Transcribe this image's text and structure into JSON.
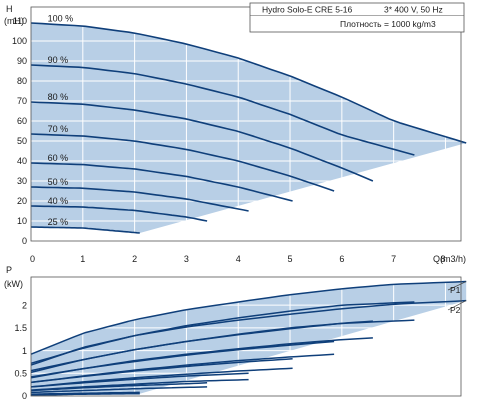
{
  "chart_data": [
    {
      "type": "line",
      "title": "Hydro Solo-E CRE 5-16",
      "subtitle": "3* 400 V, 50 Hz",
      "note": "Плотность = 1000 kg/m3",
      "ylabel": "H",
      "yunit": "(mH)",
      "xlabel": "Q(m3/h)",
      "xlim": [
        0,
        8.3
      ],
      "ylim": [
        0,
        117
      ],
      "xticks": [
        0,
        1,
        2,
        3,
        4,
        5,
        6,
        7,
        8
      ],
      "yticks": [
        0,
        10,
        20,
        30,
        40,
        50,
        60,
        70,
        80,
        90,
        100,
        110
      ],
      "grid": true,
      "operating_area_color": "#b8cfe6",
      "curve_color": "#0f3f7a",
      "series": [
        {
          "name": "100 %",
          "x": [
            0,
            1,
            2,
            3,
            4,
            5,
            6,
            7,
            8.4
          ],
          "y": [
            109,
            107.5,
            104,
            98.5,
            91.5,
            82.5,
            72,
            60,
            49
          ]
        },
        {
          "name": "90 %",
          "x": [
            0,
            1,
            2,
            3,
            4,
            5,
            6,
            7.4
          ],
          "y": [
            88,
            86.8,
            83.7,
            78.5,
            72,
            63.3,
            53,
            43
          ]
        },
        {
          "name": "80 %",
          "x": [
            0,
            1,
            2,
            3,
            4,
            5,
            6,
            6.6
          ],
          "y": [
            69.5,
            68.4,
            65.5,
            61,
            54.8,
            46.5,
            36.5,
            30
          ]
        },
        {
          "name": "70 %",
          "x": [
            0,
            1,
            2,
            3,
            4,
            5,
            5.85
          ],
          "y": [
            53.5,
            52.5,
            50,
            45.8,
            40,
            32.5,
            25
          ]
        },
        {
          "name": "60 %",
          "x": [
            0,
            1,
            2,
            3,
            4,
            5.05
          ],
          "y": [
            39,
            38.2,
            36,
            32.3,
            27,
            20
          ]
        },
        {
          "name": "50 %",
          "x": [
            0,
            1,
            2,
            3,
            4.2
          ],
          "y": [
            27,
            26.4,
            24.5,
            21,
            15
          ]
        },
        {
          "name": "40 %",
          "x": [
            0,
            1,
            2,
            3,
            3.4
          ],
          "y": [
            17.5,
            17,
            15.3,
            12,
            10
          ]
        },
        {
          "name": "25 %",
          "x": [
            0,
            1,
            2.1
          ],
          "y": [
            7,
            6.5,
            4
          ]
        }
      ]
    },
    {
      "type": "line",
      "ylabel": "P",
      "yunit": "(kW)",
      "xlim": [
        0,
        8.3
      ],
      "ylim": [
        0,
        2.62
      ],
      "xticks": [
        0,
        1,
        2,
        3,
        4,
        5,
        6,
        7,
        8
      ],
      "yticks": [
        0,
        0.5,
        1,
        1.5,
        2
      ],
      "grid": true,
      "legend": [
        "P1",
        "P2"
      ],
      "operating_area_color": "#b8cfe6",
      "curve_color": "#0f3f7a",
      "series": [
        {
          "name": "P1",
          "speed": "100 %",
          "x": [
            0,
            1,
            2,
            3,
            4,
            5,
            6,
            7,
            8.4
          ],
          "y": [
            0.92,
            1.38,
            1.68,
            1.9,
            2.07,
            2.23,
            2.36,
            2.46,
            2.52
          ]
        },
        {
          "name": "P2",
          "speed": "100 %",
          "x": [
            0,
            1,
            2,
            3,
            4,
            5,
            6,
            7,
            8.4
          ],
          "y": [
            0.68,
            1.07,
            1.33,
            1.52,
            1.67,
            1.8,
            1.92,
            2.02,
            2.1
          ]
        },
        {
          "name": "P1",
          "speed": "90 %",
          "x": [
            0,
            1,
            2,
            3,
            4,
            5,
            6,
            7.4
          ],
          "y": [
            0.72,
            1.05,
            1.33,
            1.55,
            1.72,
            1.87,
            2,
            2.07
          ]
        },
        {
          "name": "P2",
          "speed": "90 %",
          "x": [
            0,
            1,
            2,
            3,
            4,
            5,
            6,
            7.4
          ],
          "y": [
            0.52,
            0.8,
            1.02,
            1.2,
            1.35,
            1.48,
            1.6,
            1.67
          ]
        },
        {
          "name": "P1",
          "speed": "80 %",
          "x": [
            0,
            1,
            2,
            3,
            4,
            5,
            6,
            6.6
          ],
          "y": [
            0.56,
            0.8,
            1.02,
            1.2,
            1.36,
            1.5,
            1.6,
            1.65
          ]
        },
        {
          "name": "P2",
          "speed": "80 %",
          "x": [
            0,
            1,
            2,
            3,
            4,
            5,
            6,
            6.6
          ],
          "y": [
            0.4,
            0.6,
            0.78,
            0.92,
            1.04,
            1.15,
            1.24,
            1.28
          ]
        },
        {
          "name": "P1",
          "speed": "70 %",
          "x": [
            0,
            1,
            2,
            3,
            4,
            5,
            5.85
          ],
          "y": [
            0.42,
            0.6,
            0.76,
            0.9,
            1.02,
            1.12,
            1.2
          ]
        },
        {
          "name": "P2",
          "speed": "70 %",
          "x": [
            0,
            1,
            2,
            3,
            4,
            5,
            5.85
          ],
          "y": [
            0.3,
            0.44,
            0.57,
            0.68,
            0.78,
            0.86,
            0.92
          ]
        },
        {
          "name": "P1",
          "speed": "60 %",
          "x": [
            0,
            1,
            2,
            3,
            4,
            5.05
          ],
          "y": [
            0.3,
            0.43,
            0.55,
            0.65,
            0.74,
            0.82
          ]
        },
        {
          "name": "P2",
          "speed": "60 %",
          "x": [
            0,
            1,
            2,
            3,
            4,
            5.05
          ],
          "y": [
            0.2,
            0.31,
            0.4,
            0.48,
            0.55,
            0.61
          ]
        },
        {
          "name": "P1",
          "speed": "50 %",
          "x": [
            0,
            1,
            2,
            3,
            4.2
          ],
          "y": [
            0.2,
            0.29,
            0.37,
            0.44,
            0.5
          ]
        },
        {
          "name": "P2",
          "speed": "50 %",
          "x": [
            0,
            1,
            2,
            3,
            4.2
          ],
          "y": [
            0.13,
            0.2,
            0.26,
            0.32,
            0.36
          ]
        },
        {
          "name": "P1",
          "speed": "40 %",
          "x": [
            0,
            1,
            2,
            3,
            3.4
          ],
          "y": [
            0.12,
            0.18,
            0.23,
            0.27,
            0.29
          ]
        },
        {
          "name": "P2",
          "speed": "40 %",
          "x": [
            0,
            1,
            2,
            3,
            3.4
          ],
          "y": [
            0.08,
            0.12,
            0.16,
            0.19,
            0.2
          ]
        },
        {
          "name": "P1",
          "speed": "25 %",
          "x": [
            0,
            1,
            2.1
          ],
          "y": [
            0.04,
            0.06,
            0.08
          ]
        },
        {
          "name": "P2",
          "speed": "25 %",
          "x": [
            0,
            1,
            2.1
          ],
          "y": [
            0.02,
            0.04,
            0.05
          ]
        }
      ]
    }
  ]
}
